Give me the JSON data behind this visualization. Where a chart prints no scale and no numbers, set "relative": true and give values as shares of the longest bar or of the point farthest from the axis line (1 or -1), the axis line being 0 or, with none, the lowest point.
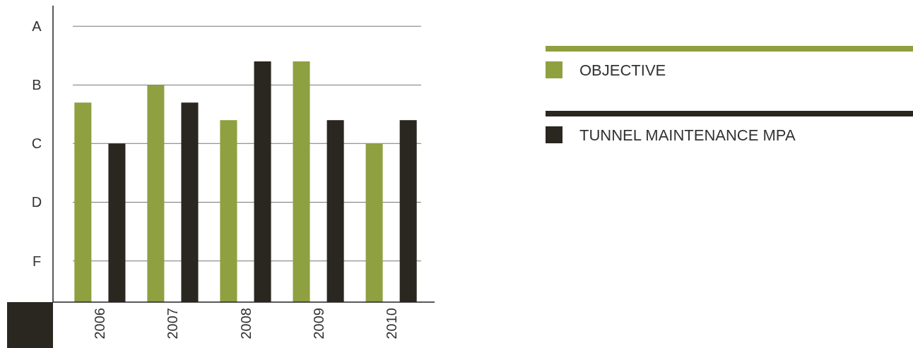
{
  "chart_data": {
    "type": "bar",
    "categories": [
      "2006",
      "2007",
      "2008",
      "2009",
      "2010"
    ],
    "series": [
      {
        "name": "OBJECTIVE",
        "color": "#8fa040",
        "values": [
          0.829,
          0.902,
          0.756,
          1,
          0.659
        ]
      },
      {
        "name": "TUNNEL MAINTENANCE MPA",
        "color": "#2a2620",
        "values": [
          0.659,
          0.829,
          1,
          0.756,
          0.756
        ]
      }
    ],
    "relative": true,
    "ref_lines": [
      {
        "axis": "y",
        "value": 0.171,
        "label": "F",
        "color": "#777777"
      },
      {
        "axis": "y",
        "value": 0.415,
        "label": "D",
        "color": "#777777"
      },
      {
        "axis": "y",
        "value": 0.659,
        "label": "C",
        "color": "#777777"
      },
      {
        "axis": "y",
        "value": 0.902,
        "label": "B",
        "color": "#777777"
      },
      {
        "axis": "y",
        "value": 1.146,
        "label": "A",
        "color": "#777777"
      }
    ],
    "legend": "right"
  }
}
